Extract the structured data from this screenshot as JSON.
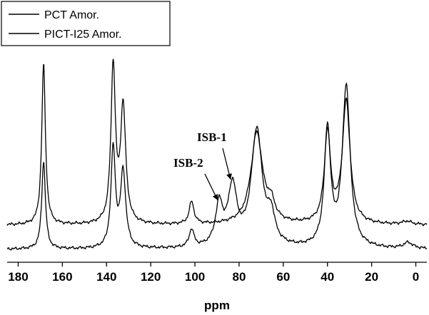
{
  "chart_data": {
    "type": "line",
    "title": "",
    "xlabel": "ppm",
    "ylabel": "",
    "xlim": [
      185,
      -5
    ],
    "x_reversed": true,
    "x_ticks": [
      180,
      160,
      140,
      120,
      100,
      80,
      60,
      40,
      20,
      0
    ],
    "legend_placement": "top-left",
    "grid": false,
    "series": [
      {
        "name": "PCT Amor.",
        "color": "#000000",
        "baseline": 0.0,
        "peaks": [
          {
            "ppm": 168.5,
            "height": 1.0,
            "width": 1.0
          },
          {
            "ppm": 137.0,
            "height": 0.98,
            "width": 1.2
          },
          {
            "ppm": 132.5,
            "height": 0.72,
            "width": 1.4
          },
          {
            "ppm": 101.5,
            "height": 0.14,
            "width": 1.3
          },
          {
            "ppm": 72.0,
            "height": 0.57,
            "width": 3.2
          },
          {
            "ppm": 65.5,
            "height": 0.1,
            "width": 2.0
          },
          {
            "ppm": 40.0,
            "height": 0.56,
            "width": 1.7
          },
          {
            "ppm": 31.5,
            "height": 0.76,
            "width": 2.1
          },
          {
            "ppm": 4.0,
            "height": 0.02,
            "width": 2.5
          }
        ]
      },
      {
        "name": "PICT-I25 Amor.",
        "color": "#000000",
        "baseline": 0.0,
        "peaks": [
          {
            "ppm": 168.5,
            "height": 0.6,
            "width": 1.0
          },
          {
            "ppm": 137.0,
            "height": 0.68,
            "width": 1.2
          },
          {
            "ppm": 132.5,
            "height": 0.52,
            "width": 1.4
          },
          {
            "ppm": 101.5,
            "height": 0.12,
            "width": 1.3
          },
          {
            "ppm": 89.0,
            "height": 0.28,
            "width": 2.0
          },
          {
            "ppm": 83.0,
            "height": 0.4,
            "width": 2.4
          },
          {
            "ppm": 72.0,
            "height": 0.8,
            "width": 3.0
          },
          {
            "ppm": 65.5,
            "height": 0.18,
            "width": 2.0
          },
          {
            "ppm": 40.0,
            "height": 0.8,
            "width": 1.7
          },
          {
            "ppm": 31.5,
            "height": 1.1,
            "width": 2.1
          },
          {
            "ppm": 3.5,
            "height": 0.04,
            "width": 2.5
          }
        ]
      }
    ],
    "annotations": [
      {
        "label": "ISB-1",
        "target_ppm": 83.0
      },
      {
        "label": "ISB-2",
        "target_ppm": 89.0
      }
    ]
  }
}
